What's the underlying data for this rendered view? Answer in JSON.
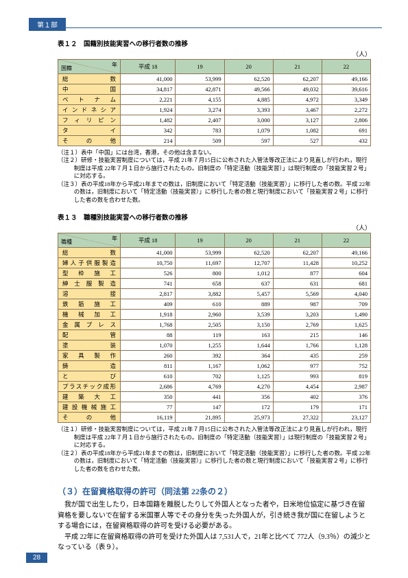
{
  "chapter_tag": "第１部",
  "page_number": "28",
  "table12": {
    "title": "表１２　国籍別技能実習への移行者数の推移",
    "unit": "（人）",
    "diag_top": "年",
    "diag_bottom": "国籍",
    "years": [
      "平成 18",
      "19",
      "20",
      "21",
      "22"
    ],
    "rows": [
      {
        "label": "総　　　　数",
        "cells": [
          "41,000",
          "53,999",
          "62,520",
          "62,207",
          "49,166"
        ]
      },
      {
        "label": "中　　　　国",
        "cells": [
          "34,817",
          "42,871",
          "49,566",
          "49,032",
          "39,616"
        ]
      },
      {
        "label": "ベ　ト　ナ　ム",
        "cells": [
          "2,221",
          "4,155",
          "4,885",
          "4,972",
          "3,349"
        ]
      },
      {
        "label": "インドネシア",
        "cells": [
          "1,924",
          "3,274",
          "3,393",
          "3,467",
          "2,272"
        ]
      },
      {
        "label": "フ ィ リ ピ ン",
        "cells": [
          "1,482",
          "2,407",
          "3,000",
          "3,127",
          "2,806"
        ]
      },
      {
        "label": "タ　　　　イ",
        "cells": [
          "342",
          "783",
          "1,079",
          "1,082",
          "691"
        ]
      },
      {
        "label": "そ　の　他",
        "cells": [
          "214",
          "509",
          "597",
          "527",
          "432"
        ]
      }
    ],
    "notes": [
      "（注１）表中「中国」には台湾，香港，その他は含まない。",
      "（注２）研修・技能実習制度については，平成 21年７月15日に公布された入管法等改正法により見直しが行われ，現行制度は平成 22年７月１日から施行されたもの。旧制度の「特定活動（技能実習）」は現行制度の「技能実習２号」に対応する。",
      "（注３）表の平成18年から平成21年までの数は，旧制度において「特定活動（技能実習）」に移行した者の数。平成 22年の数は，旧制度において「特定活動（技能実習）」に移行した者の数と現行制度において「技能実習２号」に移行した者の数を合わせた数。"
    ]
  },
  "table13": {
    "title": "表１３　職種別技能実習への移行者数の推移",
    "unit": "（人）",
    "diag_top": "年",
    "diag_bottom": "職種",
    "years": [
      "平成 18",
      "19",
      "20",
      "21",
      "22"
    ],
    "rows": [
      {
        "label": "総　　　　数",
        "cells": [
          "41,000",
          "53,999",
          "62,520",
          "62,207",
          "49,166"
        ]
      },
      {
        "label": "婦人子供服製造",
        "cells": [
          "10,750",
          "11,697",
          "12,707",
          "11,428",
          "10,252"
        ]
      },
      {
        "label": "型　枠　施　工",
        "cells": [
          "526",
          "800",
          "1,012",
          "877",
          "604"
        ]
      },
      {
        "label": "紳 士 服 製 造",
        "cells": [
          "741",
          "658",
          "637",
          "631",
          "681"
        ]
      },
      {
        "label": "溶　　　　接",
        "cells": [
          "2,817",
          "3,882",
          "5,457",
          "5,569",
          "4,040"
        ]
      },
      {
        "label": "鉄　筋　施　工",
        "cells": [
          "409",
          "610",
          "889",
          "987",
          "709"
        ]
      },
      {
        "label": "機　械　加　工",
        "cells": [
          "1,918",
          "2,960",
          "3,539",
          "3,203",
          "1,490"
        ]
      },
      {
        "label": "金 属 プ レ ス",
        "cells": [
          "1,768",
          "2,505",
          "3,150",
          "2,769",
          "1,625"
        ]
      },
      {
        "label": "配　　　　管",
        "cells": [
          "88",
          "119",
          "163",
          "215",
          "146"
        ]
      },
      {
        "label": "塗　　　　装",
        "cells": [
          "1,070",
          "1,255",
          "1,644",
          "1,766",
          "1,128"
        ]
      },
      {
        "label": "家　具　製　作",
        "cells": [
          "260",
          "392",
          "364",
          "435",
          "259"
        ]
      },
      {
        "label": "鋳　　　　造",
        "cells": [
          "811",
          "1,167",
          "1,062",
          "977",
          "752"
        ]
      },
      {
        "label": "と　　　　び",
        "cells": [
          "610",
          "702",
          "1,125",
          "993",
          "819"
        ]
      },
      {
        "label": "プラスチック成形",
        "cells": [
          "2,686",
          "4,769",
          "4,270",
          "4,454",
          "2,987"
        ]
      },
      {
        "label": "建　築　大　工",
        "cells": [
          "350",
          "441",
          "356",
          "402",
          "376"
        ]
      },
      {
        "label": "建 設 機 械 施 工",
        "cells": [
          "77",
          "147",
          "172",
          "179",
          "171"
        ]
      },
      {
        "label": "そ　の　他",
        "cells": [
          "16,119",
          "21,895",
          "25,973",
          "27,322",
          "23,127"
        ]
      }
    ],
    "notes": [
      "（注１）研修・技能実習制度については，平成 21年７月15日に公布された入管法等改正法により見直しが行われ，現行制度は平成 22年７月１日から施行されたもの。旧制度の「特定活動（技能実習）」は現行制度の「技能実習２号」に対応する。",
      "（注２）表の平成18年から平成21年までの数は，旧制度において「特定活動（技能実習）」に移行した者の数。平成 22年の数は，旧制度において「特定活動（技能実習）」に移行した者の数と現行制度において「技能実習２号」に移行した者の数を合わせた数。"
    ]
  },
  "section": {
    "title": "（３）在留資格取得の許可（同法第 22条の２）",
    "p1": "我が国で出生したり，日本国籍を離脱したりして外国人となった者や，日米地位協定に基づき在留資格を要しないで在留する米国軍人等でその身分を失った外国人が，引き続き我が国に在留しようとする場合には，在留資格取得の許可を受ける必要がある。",
    "p2": "平成 22年に在留資格取得の許可を受けた外国人は 7,531人で，21年と比べて 772人（9.3％）の減少となっている（表９）。"
  }
}
